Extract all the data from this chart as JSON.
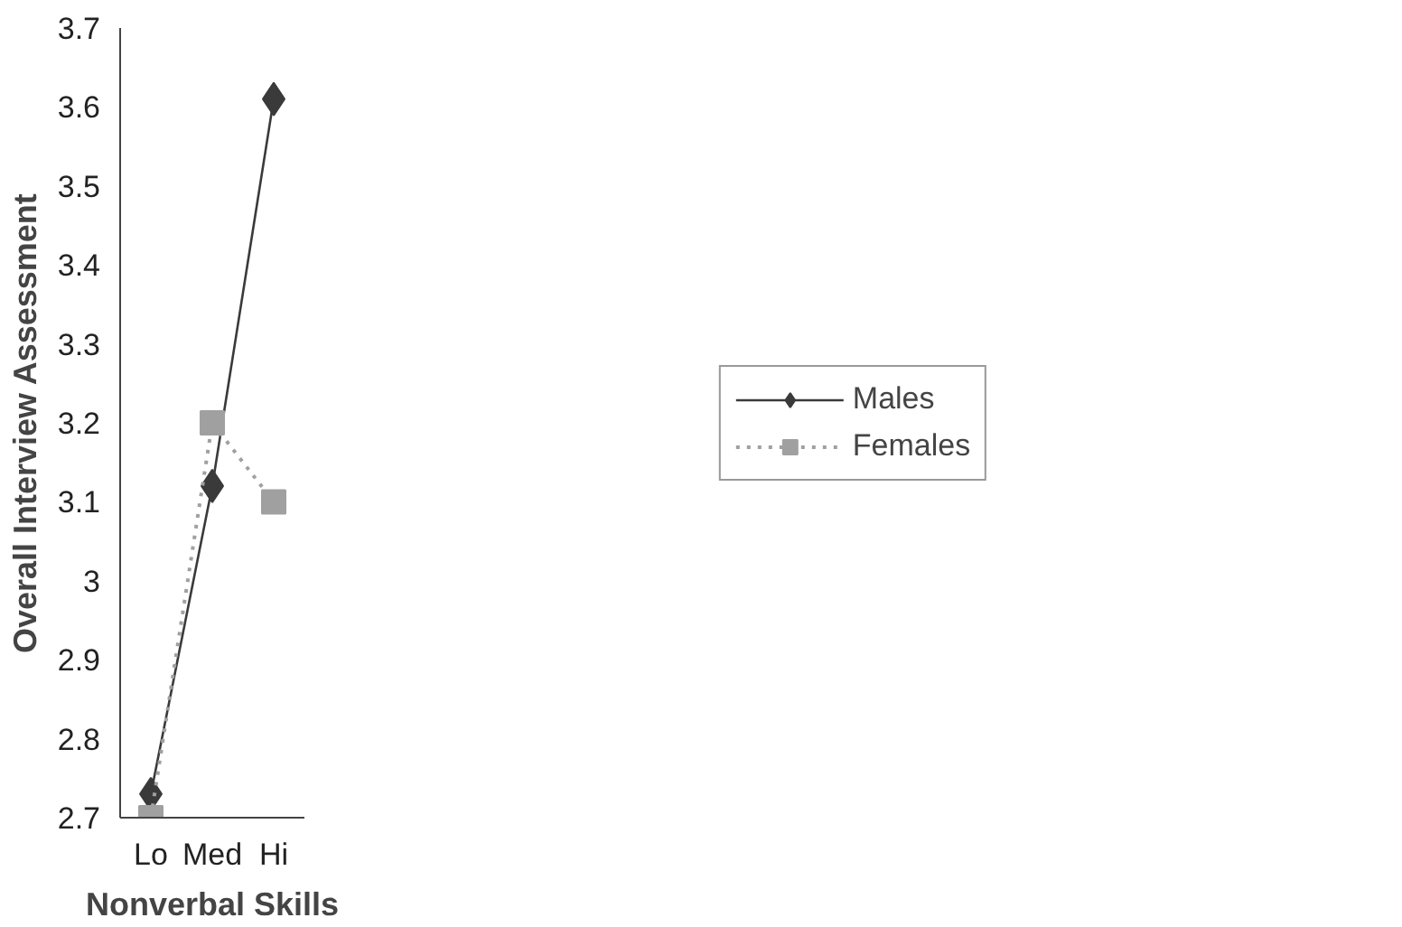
{
  "chart_data": {
    "type": "line",
    "xlabel": "Nonverbal Skills",
    "ylabel": "Overall Interview Assessment",
    "categories": [
      "Lo",
      "Med",
      "Hi"
    ],
    "series": [
      {
        "name": "Males",
        "color": "#3a3a3a",
        "values": [
          2.73,
          3.12,
          3.61
        ],
        "marker": "diamond",
        "line_style": "solid"
      },
      {
        "name": "Females",
        "color": "#a0a0a0",
        "values": [
          2.7,
          3.2,
          3.1
        ],
        "marker": "square",
        "line_style": "dotted"
      }
    ],
    "ylim": [
      2.7,
      3.7
    ],
    "yticks": [
      2.7,
      2.8,
      2.9,
      3,
      3.1,
      3.2,
      3.3,
      3.4,
      3.5,
      3.6,
      3.7
    ],
    "grid": false,
    "legend": "right"
  }
}
